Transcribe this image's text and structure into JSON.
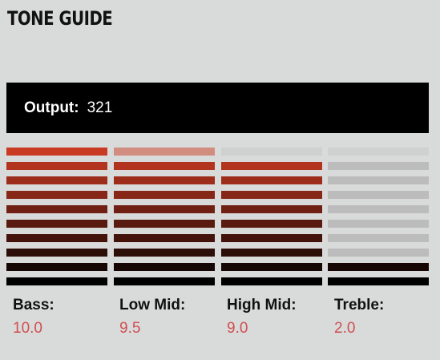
{
  "title": "TONE GUIDE",
  "output": {
    "label": "Output:",
    "value": "321"
  },
  "bands": [
    {
      "label": "Bass:",
      "value": "10.0",
      "level": 1.0
    },
    {
      "label": "Low Mid:",
      "value": "9.5",
      "level": 0.95
    },
    {
      "label": "High Mid:",
      "value": "9.0",
      "level": 0.9
    },
    {
      "label": "Treble:",
      "value": "2.0",
      "level": 0.2
    }
  ],
  "colors": {
    "background": "#d9dada",
    "output_background": "#000000",
    "value_text": "#d0504f",
    "active_top": "#c93a22",
    "active_bottom": "#000000",
    "partial": "#d18d7f",
    "inactive_light": "#cfd0d0",
    "inactive_dark": "#bcbcbc"
  }
}
